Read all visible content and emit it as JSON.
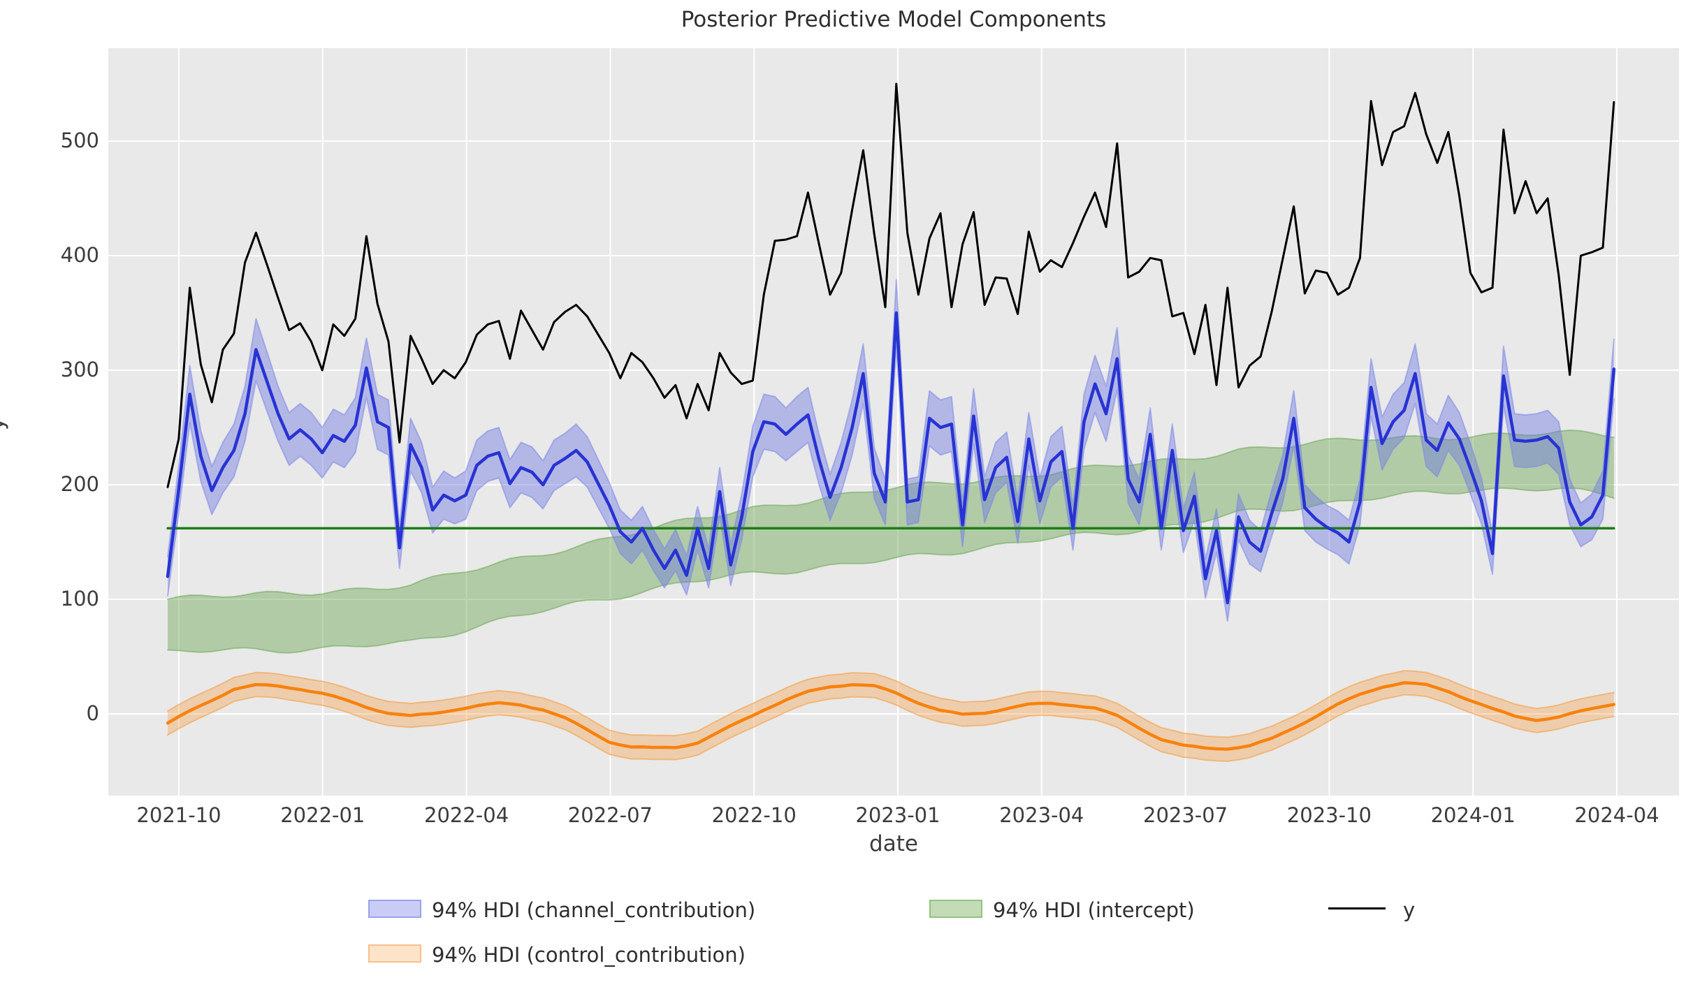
{
  "title": "Posterior Predictive Model Components",
  "axes": {
    "xlabel": "date",
    "ylabel": "y",
    "background": "#e9e9e9",
    "grid_color": "#ffffff",
    "x_tick_labels": [
      "2021-10",
      "2022-01",
      "2022-04",
      "2022-07",
      "2022-10",
      "2023-01",
      "2023-04",
      "2023-07",
      "2023-10",
      "2024-01",
      "2024-04"
    ],
    "y_ticks": [
      0,
      100,
      200,
      300,
      400,
      500
    ]
  },
  "legend": {
    "channel_label": "94% HDI (channel_contribution)",
    "intercept_label": "94% HDI (intercept)",
    "y_label": "y",
    "control_label": "94% HDI (control_contribution)",
    "channel_patch_fill": "#c9cdf5",
    "channel_patch_edge": "#9aa2ec",
    "intercept_patch_fill": "#c3dcb6",
    "intercept_patch_edge": "#94c184",
    "control_patch_fill": "#fde4c9",
    "control_patch_edge": "#f9bf8d"
  },
  "chart_data": {
    "type": "line",
    "title": "Posterior Predictive Model Components",
    "xlabel": "date",
    "ylabel": "y",
    "x_start_date": "2021-09-27",
    "x_step_days": 7,
    "n_points": 132,
    "x_tick_labels": [
      "2021-10",
      "2022-01",
      "2022-04",
      "2022-07",
      "2022-10",
      "2023-01",
      "2023-04",
      "2023-07",
      "2023-10",
      "2024-01",
      "2024-04"
    ],
    "ylim": [
      -71,
      581
    ],
    "grid": true,
    "legend_position": "below",
    "series": [
      {
        "name": "y",
        "kind": "line",
        "color": "#000000",
        "values": [
          198,
          240,
          372,
          305,
          272,
          318,
          332,
          394,
          420,
          392,
          363,
          335,
          341,
          325,
          300,
          340,
          330,
          345,
          417,
          358,
          325,
          237,
          330,
          310,
          288,
          300,
          293,
          307,
          331,
          340,
          343,
          310,
          352,
          335,
          318,
          342,
          351,
          357,
          347,
          331,
          315,
          293,
          315,
          307,
          293,
          276,
          287,
          258,
          288,
          265,
          315,
          298,
          288,
          291,
          366,
          413,
          414,
          417,
          455,
          410,
          366,
          385,
          440,
          492,
          419,
          355,
          550,
          420,
          366,
          415,
          437,
          355,
          410,
          438,
          357,
          381,
          380,
          349,
          421,
          386,
          396,
          390,
          411,
          434,
          455,
          425,
          498,
          381,
          386,
          398,
          396,
          347,
          350,
          314,
          357,
          287,
          372,
          285,
          304,
          312,
          351,
          397,
          443,
          367,
          387,
          385,
          366,
          372,
          398,
          535,
          479,
          508,
          513,
          542,
          506,
          481,
          508,
          452,
          385,
          368,
          372,
          510,
          437,
          465,
          437,
          450,
          383,
          296,
          400,
          403,
          407,
          534
        ]
      },
      {
        "name": "channel_contribution",
        "kind": "line_with_hdi",
        "color": "#2733d3",
        "band_fill": "#6973e1",
        "mean": [
          120,
          196,
          279,
          225,
          195,
          215,
          230,
          262,
          318,
          290,
          262,
          240,
          248,
          240,
          228,
          243,
          238,
          252,
          302,
          255,
          250,
          145,
          235,
          215,
          178,
          191,
          186,
          191,
          217,
          225,
          228,
          201,
          215,
          211,
          200,
          217,
          223,
          230,
          220,
          201,
          182,
          159,
          150,
          162,
          143,
          127,
          143,
          121,
          162,
          127,
          194,
          130,
          172,
          229,
          255,
          253,
          244,
          253,
          261,
          222,
          189,
          215,
          250,
          297,
          210,
          185,
          350,
          185,
          187,
          258,
          250,
          253,
          165,
          260,
          187,
          215,
          224,
          168,
          240,
          186,
          220,
          229,
          162,
          255,
          288,
          262,
          310,
          205,
          185,
          244,
          162,
          230,
          160,
          190,
          118,
          160,
          97,
          172,
          150,
          142,
          175,
          205,
          258,
          180,
          170,
          163,
          158,
          150,
          185,
          285,
          236,
          255,
          265,
          297,
          239,
          230,
          254,
          240,
          214,
          186,
          140,
          295,
          239,
          238,
          239,
          242,
          232,
          185,
          165,
          172,
          191,
          301
        ],
        "hdi_half_width": [
          17,
          21,
          25,
          22,
          21,
          22,
          23,
          24,
          27,
          26,
          24,
          23,
          23,
          23,
          22,
          23,
          23,
          24,
          26,
          24,
          24,
          18,
          23,
          22,
          20,
          21,
          20,
          21,
          22,
          22,
          22,
          21,
          22,
          22,
          21,
          22,
          22,
          23,
          22,
          21,
          20,
          19,
          19,
          19,
          18,
          17,
          18,
          17,
          19,
          17,
          21,
          18,
          20,
          22,
          24,
          24,
          23,
          24,
          24,
          22,
          20,
          22,
          24,
          26,
          22,
          20,
          29,
          20,
          20,
          24,
          24,
          24,
          19,
          24,
          20,
          22,
          22,
          19,
          23,
          20,
          22,
          22,
          19,
          24,
          25,
          24,
          27,
          21,
          20,
          23,
          19,
          23,
          19,
          21,
          17,
          19,
          16,
          20,
          19,
          18,
          20,
          21,
          24,
          20,
          20,
          19,
          19,
          19,
          20,
          25,
          23,
          24,
          24,
          26,
          23,
          23,
          24,
          23,
          22,
          20,
          18,
          26,
          23,
          23,
          23,
          23,
          23,
          20,
          19,
          20,
          21,
          26
        ]
      },
      {
        "name": "intercept",
        "kind": "line_with_hdi",
        "color": "#1e7e16",
        "band_fill": "#6ea757",
        "mean_constant": 162,
        "hdi_checkpoints": {
          "index": [
            0,
            14,
            22,
            31,
            47,
            53,
            66,
            79,
            92,
            97,
            109,
            118,
            126,
            131
          ],
          "lower": [
            54,
            57,
            62,
            84,
            115,
            122,
            135,
            152,
            165,
            175,
            188,
            196,
            196,
            190
          ],
          "upper": [
            100,
            107,
            112,
            134,
            168,
            180,
            197,
            210,
            222,
            231,
            240,
            243,
            245,
            243
          ]
        }
      },
      {
        "name": "control_contribution",
        "kind": "line_with_hdi",
        "color": "#f8820d",
        "band_fill": "#f69a3c",
        "mean_checkpoints": {
          "index": [
            0,
            2,
            4,
            6,
            8,
            10,
            12,
            14,
            16,
            18,
            20,
            22,
            24,
            26,
            28,
            30,
            32,
            34,
            36,
            38,
            40,
            42,
            44,
            46,
            48,
            50,
            52,
            54,
            56,
            58,
            60,
            62,
            64,
            66,
            68,
            70,
            72,
            74,
            76,
            78,
            80,
            82,
            84,
            86,
            88,
            90,
            92,
            94,
            96,
            98,
            100,
            102,
            104,
            106,
            108,
            110,
            112,
            114,
            116,
            118,
            120,
            122,
            124,
            126,
            128,
            130,
            131
          ],
          "values": [
            -8,
            2,
            12,
            22,
            25,
            24,
            22,
            18,
            12,
            6,
            1,
            -2,
            0,
            4,
            7,
            9,
            8,
            4,
            -4,
            -14,
            -24,
            -29,
            -30,
            -29,
            -25,
            -16,
            -6,
            4,
            12,
            19,
            24,
            26,
            24,
            18,
            10,
            3,
            -1,
            1,
            5,
            8,
            9,
            8,
            5,
            -2,
            -12,
            -22,
            -28,
            -30,
            -30,
            -28,
            -22,
            -12,
            -2,
            8,
            17,
            24,
            27,
            25,
            20,
            12,
            4,
            -2,
            -5,
            -3,
            2,
            7,
            9
          ]
        },
        "hdi_half_width_constant": 10.5
      }
    ]
  }
}
